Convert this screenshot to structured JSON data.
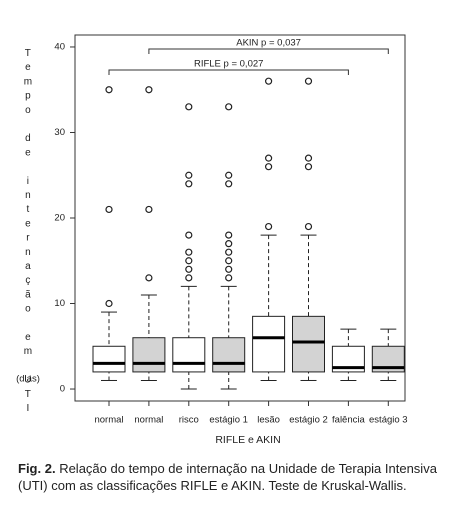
{
  "chart_data": {
    "type": "box",
    "ylabel": "Tempo de internação em UTI",
    "yunit": "(dias)",
    "xlabel": "RIFLE e AKIN",
    "categories": [
      "normal",
      "normal",
      "risco",
      "estágio 1",
      "lesão",
      "estágio 2",
      "falência",
      "estágio 3"
    ],
    "colors": [
      "#ffffff",
      "#d3d3d3",
      "#ffffff",
      "#d3d3d3",
      "#ffffff",
      "#d3d3d3",
      "#ffffff",
      "#d3d3d3"
    ],
    "boxes": [
      {
        "whislo": 1,
        "q1": 2,
        "med": 3,
        "q3": 5,
        "whishi": 9,
        "fliers": [
          10,
          21,
          35
        ]
      },
      {
        "whislo": 1,
        "q1": 2,
        "med": 3,
        "q3": 6,
        "whishi": 11,
        "fliers": [
          13,
          21,
          35
        ]
      },
      {
        "whislo": 0,
        "q1": 2,
        "med": 3,
        "q3": 6,
        "whishi": 12,
        "fliers": [
          13,
          14,
          15,
          16,
          18,
          24,
          25,
          33
        ]
      },
      {
        "whislo": 0,
        "q1": 2,
        "med": 3,
        "q3": 6,
        "whishi": 12,
        "fliers": [
          13,
          14,
          15,
          16,
          17,
          18,
          24,
          25,
          33
        ]
      },
      {
        "whislo": 1,
        "q1": 2,
        "med": 6,
        "q3": 8.5,
        "whishi": 18,
        "fliers": [
          19,
          26,
          27,
          36
        ]
      },
      {
        "whislo": 1,
        "q1": 2,
        "med": 5.5,
        "q3": 8.5,
        "whishi": 18,
        "fliers": [
          19,
          26,
          27,
          36
        ]
      },
      {
        "whislo": 1,
        "q1": 2,
        "med": 2.5,
        "q3": 5,
        "whishi": 7,
        "fliers": []
      },
      {
        "whislo": 1,
        "q1": 2,
        "med": 2.5,
        "q3": 5,
        "whishi": 7,
        "fliers": []
      }
    ],
    "annotations": [
      "AKIN p = 0,037",
      "RIFLE p = 0,027"
    ],
    "ylim": [
      -1.4,
      41.4
    ],
    "yticks": [
      0,
      10,
      20,
      30,
      40
    ]
  },
  "caption": {
    "label": "Fig. 2.",
    "text": "Relação do tempo de internação na Unidade de Terapia Intensiva (UTI) com as classificações RIFLE e AKIN. Teste de Kruskal-Wallis."
  }
}
